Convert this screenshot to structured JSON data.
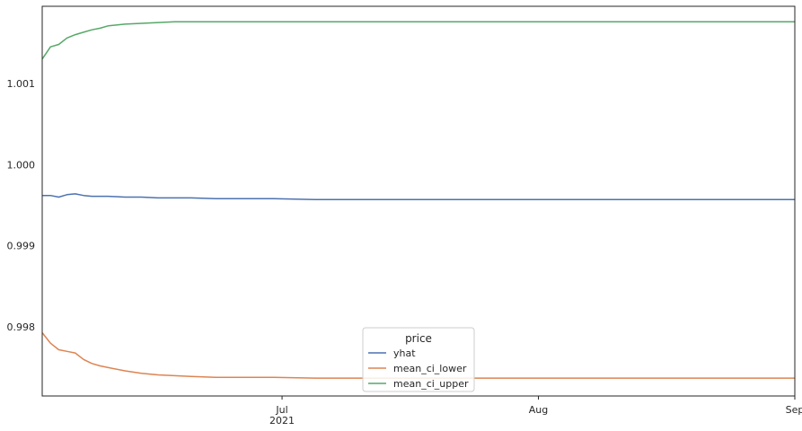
{
  "chart_data": {
    "type": "line",
    "title": "",
    "xlabel": "",
    "ylabel": "",
    "xlim": [
      "2021-06-02",
      "2021-09-01"
    ],
    "ylim": [
      0.99715,
      1.00195
    ],
    "grid": false,
    "legend": {
      "title": "price",
      "placement": "lower-center"
    },
    "x_ticks": [
      {
        "date": "2021-07-01",
        "label": "Jul",
        "sublabel": "2021"
      },
      {
        "date": "2021-08-01",
        "label": "Aug",
        "sublabel": ""
      },
      {
        "date": "2021-09-01",
        "label": "Sep",
        "sublabel": ""
      }
    ],
    "y_ticks": [
      {
        "value": 0.998,
        "label": "0.998"
      },
      {
        "value": 0.999,
        "label": "0.999"
      },
      {
        "value": 1.0,
        "label": "1.000"
      },
      {
        "value": 1.001,
        "label": "1.001"
      }
    ],
    "x": [
      "2021-06-02",
      "2021-06-03",
      "2021-06-04",
      "2021-06-05",
      "2021-06-06",
      "2021-06-07",
      "2021-06-08",
      "2021-06-09",
      "2021-06-10",
      "2021-06-12",
      "2021-06-14",
      "2021-06-16",
      "2021-06-18",
      "2021-06-20",
      "2021-06-23",
      "2021-06-26",
      "2021-06-30",
      "2021-07-05",
      "2021-07-15",
      "2021-08-01",
      "2021-08-15",
      "2021-09-01"
    ],
    "series": [
      {
        "name": "yhat",
        "color": "#4c72b0",
        "values": [
          0.99962,
          0.99962,
          0.9996,
          0.99963,
          0.99964,
          0.99962,
          0.99961,
          0.99961,
          0.99961,
          0.9996,
          0.9996,
          0.99959,
          0.99959,
          0.99959,
          0.99958,
          0.99958,
          0.99958,
          0.99957,
          0.99957,
          0.99957,
          0.99957,
          0.99957
        ]
      },
      {
        "name": "mean_ci_lower",
        "color": "#dd8452",
        "values": [
          0.99793,
          0.9978,
          0.99772,
          0.9977,
          0.99768,
          0.9976,
          0.99755,
          0.99752,
          0.9975,
          0.99746,
          0.99743,
          0.99741,
          0.9974,
          0.99739,
          0.99738,
          0.99738,
          0.99738,
          0.99737,
          0.99737,
          0.99737,
          0.99737,
          0.99737
        ]
      },
      {
        "name": "mean_ci_upper",
        "color": "#55a868",
        "values": [
          1.0013,
          1.00145,
          1.00148,
          1.00156,
          1.0016,
          1.00163,
          1.00166,
          1.00168,
          1.00171,
          1.00173,
          1.00174,
          1.00175,
          1.00176,
          1.00176,
          1.00176,
          1.00176,
          1.00176,
          1.00176,
          1.00176,
          1.00176,
          1.00176,
          1.00176
        ]
      }
    ]
  }
}
